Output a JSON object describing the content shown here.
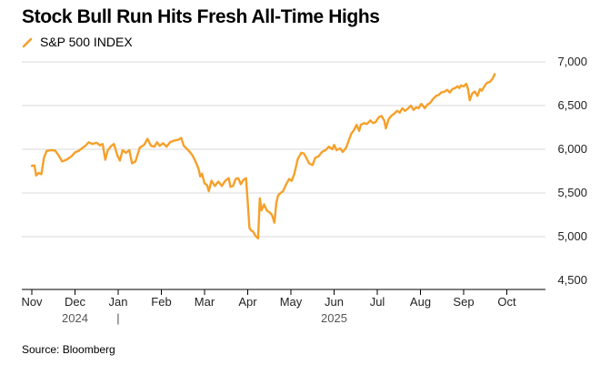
{
  "title": "Stock Bull Run Hits Fresh All-Time Highs",
  "source": "Source: Bloomberg",
  "colors": {
    "line": "#f5a02a",
    "grid": "#d9d9d9",
    "axis": "#000000"
  },
  "chart_data": {
    "type": "line",
    "title": "Stock Bull Run Hits Fresh All-Time Highs",
    "xlabel": "",
    "ylabel": "",
    "ylim": [
      4500,
      7000
    ],
    "y_ticks": [
      {
        "value": 7000,
        "label": "7,000"
      },
      {
        "value": 6500,
        "label": "6,500"
      },
      {
        "value": 6000,
        "label": "6,000"
      },
      {
        "value": 5500,
        "label": "5,500"
      },
      {
        "value": 5000,
        "label": "5,000"
      },
      {
        "value": 4500,
        "label": "4,500"
      }
    ],
    "x_ticks": [
      "Nov",
      "Dec",
      "Jan",
      "Feb",
      "Mar",
      "Apr",
      "May",
      "Jun",
      "Jul",
      "Aug",
      "Sep",
      "Oct"
    ],
    "years": [
      {
        "label": "2024",
        "month": 1
      },
      {
        "label": "|",
        "month": 2
      },
      {
        "label": "2025",
        "month": 7
      }
    ],
    "grid": true,
    "legend": {
      "position": "top-left",
      "entries": [
        "S&P 500 INDEX"
      ]
    },
    "series": [
      {
        "name": "S&P 500 INDEX",
        "points": [
          [
            0.0,
            5810
          ],
          [
            0.06,
            5815
          ],
          [
            0.1,
            5700
          ],
          [
            0.16,
            5730
          ],
          [
            0.22,
            5715
          ],
          [
            0.28,
            5900
          ],
          [
            0.34,
            5980
          ],
          [
            0.44,
            5990
          ],
          [
            0.54,
            5985
          ],
          [
            0.62,
            5930
          ],
          [
            0.7,
            5860
          ],
          [
            0.8,
            5880
          ],
          [
            0.92,
            5920
          ],
          [
            1.0,
            5965
          ],
          [
            1.08,
            5980
          ],
          [
            1.16,
            6010
          ],
          [
            1.24,
            6040
          ],
          [
            1.32,
            6080
          ],
          [
            1.4,
            6060
          ],
          [
            1.5,
            6075
          ],
          [
            1.58,
            6045
          ],
          [
            1.64,
            6060
          ],
          [
            1.7,
            5880
          ],
          [
            1.76,
            5990
          ],
          [
            1.84,
            6040
          ],
          [
            1.9,
            6060
          ],
          [
            1.98,
            5930
          ],
          [
            2.04,
            5870
          ],
          [
            2.1,
            5990
          ],
          [
            2.18,
            5960
          ],
          [
            2.26,
            5990
          ],
          [
            2.32,
            5840
          ],
          [
            2.4,
            5860
          ],
          [
            2.5,
            6020
          ],
          [
            2.6,
            6050
          ],
          [
            2.68,
            6120
          ],
          [
            2.76,
            6040
          ],
          [
            2.84,
            6030
          ],
          [
            2.9,
            6080
          ],
          [
            2.96,
            6040
          ],
          [
            3.04,
            6070
          ],
          [
            3.12,
            6030
          ],
          [
            3.2,
            6080
          ],
          [
            3.3,
            6100
          ],
          [
            3.4,
            6110
          ],
          [
            3.46,
            6130
          ],
          [
            3.52,
            6040
          ],
          [
            3.58,
            6010
          ],
          [
            3.66,
            5970
          ],
          [
            3.72,
            5930
          ],
          [
            3.8,
            5850
          ],
          [
            3.86,
            5780
          ],
          [
            3.9,
            5690
          ],
          [
            3.94,
            5720
          ],
          [
            4.0,
            5610
          ],
          [
            4.06,
            5590
          ],
          [
            4.1,
            5520
          ],
          [
            4.16,
            5640
          ],
          [
            4.24,
            5580
          ],
          [
            4.32,
            5630
          ],
          [
            4.4,
            5580
          ],
          [
            4.48,
            5640
          ],
          [
            4.56,
            5670
          ],
          [
            4.6,
            5570
          ],
          [
            4.66,
            5580
          ],
          [
            4.72,
            5660
          ],
          [
            4.78,
            5670
          ],
          [
            4.84,
            5600
          ],
          [
            4.9,
            5650
          ],
          [
            4.96,
            5670
          ],
          [
            5.0,
            5400
          ],
          [
            5.04,
            5100
          ],
          [
            5.08,
            5070
          ],
          [
            5.12,
            5060
          ],
          [
            5.18,
            5010
          ],
          [
            5.24,
            4980
          ],
          [
            5.28,
            5440
          ],
          [
            5.32,
            5300
          ],
          [
            5.38,
            5370
          ],
          [
            5.44,
            5300
          ],
          [
            5.5,
            5280
          ],
          [
            5.56,
            5250
          ],
          [
            5.62,
            5160
          ],
          [
            5.66,
            5380
          ],
          [
            5.7,
            5470
          ],
          [
            5.76,
            5500
          ],
          [
            5.82,
            5520
          ],
          [
            5.88,
            5590
          ],
          [
            5.96,
            5660
          ],
          [
            6.02,
            5640
          ],
          [
            6.08,
            5720
          ],
          [
            6.16,
            5890
          ],
          [
            6.24,
            5960
          ],
          [
            6.3,
            5950
          ],
          [
            6.36,
            5900
          ],
          [
            6.42,
            5840
          ],
          [
            6.5,
            5820
          ],
          [
            6.56,
            5900
          ],
          [
            6.64,
            5920
          ],
          [
            6.72,
            5970
          ],
          [
            6.8,
            5990
          ],
          [
            6.88,
            6030
          ],
          [
            6.96,
            6000
          ],
          [
            7.0,
            6050
          ],
          [
            7.06,
            5990
          ],
          [
            7.14,
            6010
          ],
          [
            7.2,
            5970
          ],
          [
            7.28,
            6020
          ],
          [
            7.34,
            6100
          ],
          [
            7.4,
            6180
          ],
          [
            7.46,
            6220
          ],
          [
            7.52,
            6280
          ],
          [
            7.58,
            6210
          ],
          [
            7.62,
            6280
          ],
          [
            7.7,
            6300
          ],
          [
            7.76,
            6290
          ],
          [
            7.84,
            6330
          ],
          [
            7.9,
            6300
          ],
          [
            7.96,
            6310
          ],
          [
            8.04,
            6370
          ],
          [
            8.1,
            6380
          ],
          [
            8.16,
            6330
          ],
          [
            8.2,
            6240
          ],
          [
            8.26,
            6340
          ],
          [
            8.32,
            6380
          ],
          [
            8.4,
            6410
          ],
          [
            8.46,
            6440
          ],
          [
            8.52,
            6420
          ],
          [
            8.58,
            6470
          ],
          [
            8.64,
            6440
          ],
          [
            8.7,
            6460
          ],
          [
            8.78,
            6500
          ],
          [
            8.84,
            6450
          ],
          [
            8.9,
            6480
          ],
          [
            8.96,
            6470
          ],
          [
            9.02,
            6520
          ],
          [
            9.1,
            6470
          ],
          [
            9.16,
            6510
          ],
          [
            9.22,
            6530
          ],
          [
            9.3,
            6580
          ],
          [
            9.36,
            6610
          ],
          [
            9.42,
            6620
          ],
          [
            9.48,
            6650
          ],
          [
            9.56,
            6660
          ],
          [
            9.62,
            6680
          ],
          [
            9.68,
            6650
          ],
          [
            9.74,
            6690
          ],
          [
            9.8,
            6700
          ],
          [
            9.86,
            6720
          ],
          [
            9.9,
            6700
          ],
          [
            9.94,
            6730
          ],
          [
            10.0,
            6720
          ],
          [
            10.06,
            6750
          ],
          [
            10.1,
            6690
          ],
          [
            10.14,
            6560
          ],
          [
            10.2,
            6640
          ],
          [
            10.26,
            6660
          ],
          [
            10.32,
            6610
          ],
          [
            10.38,
            6690
          ],
          [
            10.42,
            6670
          ],
          [
            10.48,
            6720
          ],
          [
            10.54,
            6760
          ],
          [
            10.6,
            6770
          ],
          [
            10.66,
            6800
          ],
          [
            10.72,
            6860
          ]
        ]
      }
    ]
  },
  "legend_label": "S&P 500 INDEX"
}
